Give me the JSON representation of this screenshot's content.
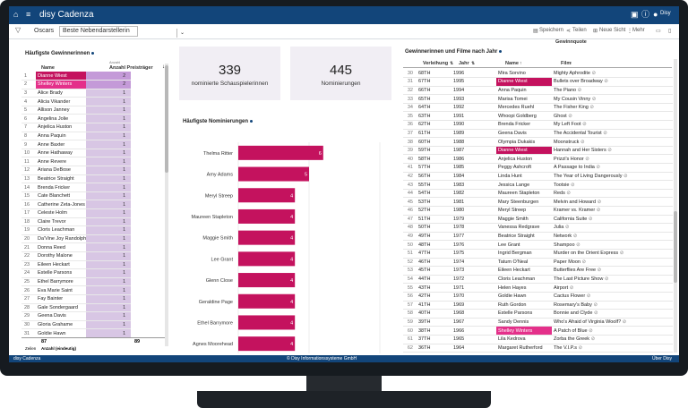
{
  "app": {
    "title": "disy Cadenza",
    "user": "Disy",
    "status_left": "disy Cadenza",
    "status_center": "© Disy Informationssysteme GmbH",
    "status_right": "Über Disy"
  },
  "toolbar": {
    "crumb": "Oscars",
    "selected_view": "Beste Nebendarstellerin",
    "save": "Speichern",
    "share": "Teilen",
    "new_view": "Neue Sicht",
    "more": "Mehr"
  },
  "left_panel": {
    "title": "Häufigste Gewinnerinnen",
    "col_name": "Name",
    "col_count_top": "Anzahl",
    "col_count": "Anzahl Preisträger",
    "rows": [
      {
        "num": "1",
        "name": "Dianne Wiest",
        "count": "2",
        "hl": "hl"
      },
      {
        "num": "2",
        "name": "Shelley Winters",
        "count": "2",
        "hl": "hl2"
      },
      {
        "num": "3",
        "name": "Alice Brady",
        "count": "1",
        "hl": ""
      },
      {
        "num": "4",
        "name": "Alicia Vikander",
        "count": "1",
        "hl": ""
      },
      {
        "num": "5",
        "name": "Allison Janney",
        "count": "1",
        "hl": ""
      },
      {
        "num": "6",
        "name": "Angelina Jolie",
        "count": "1",
        "hl": ""
      },
      {
        "num": "7",
        "name": "Anjelica Huston",
        "count": "1",
        "hl": ""
      },
      {
        "num": "8",
        "name": "Anna Paquin",
        "count": "1",
        "hl": ""
      },
      {
        "num": "9",
        "name": "Anne Baxter",
        "count": "1",
        "hl": ""
      },
      {
        "num": "10",
        "name": "Anne Hathaway",
        "count": "1",
        "hl": ""
      },
      {
        "num": "11",
        "name": "Anne Revere",
        "count": "1",
        "hl": ""
      },
      {
        "num": "12",
        "name": "Ariana DeBose",
        "count": "1",
        "hl": ""
      },
      {
        "num": "13",
        "name": "Beatrice Straight",
        "count": "1",
        "hl": ""
      },
      {
        "num": "14",
        "name": "Brenda Fricker",
        "count": "1",
        "hl": ""
      },
      {
        "num": "15",
        "name": "Cate Blanchett",
        "count": "1",
        "hl": ""
      },
      {
        "num": "16",
        "name": "Catherine Zeta-Jones",
        "count": "1",
        "hl": ""
      },
      {
        "num": "17",
        "name": "Celeste Holm",
        "count": "1",
        "hl": ""
      },
      {
        "num": "18",
        "name": "Claire Trevor",
        "count": "1",
        "hl": ""
      },
      {
        "num": "19",
        "name": "Cloris Leachman",
        "count": "1",
        "hl": ""
      },
      {
        "num": "20",
        "name": "Da'Vine Joy Randolph",
        "count": "1",
        "hl": ""
      },
      {
        "num": "21",
        "name": "Donna Reed",
        "count": "1",
        "hl": ""
      },
      {
        "num": "22",
        "name": "Dorothy Malone",
        "count": "1",
        "hl": ""
      },
      {
        "num": "23",
        "name": "Eileen Heckart",
        "count": "1",
        "hl": ""
      },
      {
        "num": "24",
        "name": "Estelle Parsons",
        "count": "1",
        "hl": ""
      },
      {
        "num": "25",
        "name": "Ethel Barrymore",
        "count": "1",
        "hl": ""
      },
      {
        "num": "26",
        "name": "Eva Marie Saint",
        "count": "1",
        "hl": ""
      },
      {
        "num": "27",
        "name": "Fay Bainter",
        "count": "1",
        "hl": ""
      },
      {
        "num": "28",
        "name": "Gale Sondergaard",
        "count": "1",
        "hl": ""
      },
      {
        "num": "29",
        "name": "Geena Davis",
        "count": "1",
        "hl": ""
      },
      {
        "num": "30",
        "name": "Gloria Grahame",
        "count": "1",
        "hl": ""
      },
      {
        "num": "31",
        "name": "Goldie Hawn",
        "count": "1",
        "hl": ""
      }
    ],
    "footer_num": "87",
    "footer_count": "89",
    "footer_rows_label": "Zeilen",
    "footer_count_label": "Anzahl (eindeutig)"
  },
  "kpis": [
    {
      "value": "339",
      "label": "nominierte Schauspielerinnen"
    },
    {
      "value": "445",
      "label": "Nominierungen"
    }
  ],
  "chart_panel": {
    "title": "Häufigste Nominierungen"
  },
  "chart_data": {
    "type": "bar",
    "orientation": "horizontal",
    "categories": [
      "Thelma Ritter",
      "Amy Adams",
      "Meryl Streep",
      "Maureen Stapleton",
      "Maggie Smith",
      "Lee Grant",
      "Glenn Close",
      "Geraldine Page",
      "Ethel Barrymore",
      "Agnes Moorehead"
    ],
    "values": [
      6,
      5,
      4,
      4,
      4,
      4,
      4,
      4,
      4,
      4
    ],
    "xlabel": "Nominierungen",
    "xlim": [
      0,
      10
    ],
    "xticks": [
      "0",
      "5",
      "10"
    ],
    "color": "#c4125e"
  },
  "right_panel": {
    "title": "Gewinnerinnen und Filme nach Jahr",
    "quota_label": "Gewinnquote",
    "col_award": "Verleihung",
    "col_year": "Jahr",
    "col_name": "Name",
    "col_film": "Film",
    "rows": [
      {
        "rn": "30",
        "award": "68TH",
        "year": "1996",
        "name": "Mira Sorvino",
        "film": "Mighty Aphrodite",
        "hl": ""
      },
      {
        "rn": "31",
        "award": "67TH",
        "year": "1995",
        "name": "Dianne Wiest",
        "film": "Bullets over Broadway",
        "hl": "hl"
      },
      {
        "rn": "32",
        "award": "66TH",
        "year": "1994",
        "name": "Anna Paquin",
        "film": "The Piano",
        "hl": ""
      },
      {
        "rn": "33",
        "award": "65TH",
        "year": "1993",
        "name": "Marisa Tomei",
        "film": "My Cousin Vinny",
        "hl": ""
      },
      {
        "rn": "34",
        "award": "64TH",
        "year": "1992",
        "name": "Mercedes Ruehl",
        "film": "The Fisher King",
        "hl": ""
      },
      {
        "rn": "35",
        "award": "63TH",
        "year": "1991",
        "name": "Whoopi Goldberg",
        "film": "Ghost",
        "hl": ""
      },
      {
        "rn": "36",
        "award": "62TH",
        "year": "1990",
        "name": "Brenda Fricker",
        "film": "My Left Foot",
        "hl": ""
      },
      {
        "rn": "37",
        "award": "61TH",
        "year": "1989",
        "name": "Geena Davis",
        "film": "The Accidental Tourist",
        "hl": ""
      },
      {
        "rn": "38",
        "award": "60TH",
        "year": "1988",
        "name": "Olympia Dukakis",
        "film": "Moonstruck",
        "hl": ""
      },
      {
        "rn": "39",
        "award": "59TH",
        "year": "1987",
        "name": "Dianne Wiest",
        "film": "Hannah and Her Sisters",
        "hl": "hl"
      },
      {
        "rn": "40",
        "award": "58TH",
        "year": "1986",
        "name": "Anjelica Huston",
        "film": "Prizzi's Honor",
        "hl": ""
      },
      {
        "rn": "41",
        "award": "57TH",
        "year": "1985",
        "name": "Peggy Ashcroft",
        "film": "A Passage to India",
        "hl": ""
      },
      {
        "rn": "42",
        "award": "56TH",
        "year": "1984",
        "name": "Linda Hunt",
        "film": "The Year of Living Dangerously",
        "hl": ""
      },
      {
        "rn": "43",
        "award": "55TH",
        "year": "1983",
        "name": "Jessica Lange",
        "film": "Tootsie",
        "hl": ""
      },
      {
        "rn": "44",
        "award": "54TH",
        "year": "1982",
        "name": "Maureen Stapleton",
        "film": "Reds",
        "hl": ""
      },
      {
        "rn": "45",
        "award": "53TH",
        "year": "1981",
        "name": "Mary Steenburgen",
        "film": "Melvin and Howard",
        "hl": ""
      },
      {
        "rn": "46",
        "award": "52TH",
        "year": "1980",
        "name": "Meryl Streep",
        "film": "Kramer vs. Kramer",
        "hl": ""
      },
      {
        "rn": "47",
        "award": "51TH",
        "year": "1979",
        "name": "Maggie Smith",
        "film": "California Suite",
        "hl": ""
      },
      {
        "rn": "48",
        "award": "50TH",
        "year": "1978",
        "name": "Vanessa Redgrave",
        "film": "Julia",
        "hl": ""
      },
      {
        "rn": "49",
        "award": "49TH",
        "year": "1977",
        "name": "Beatrice Straight",
        "film": "Network",
        "hl": ""
      },
      {
        "rn": "50",
        "award": "48TH",
        "year": "1976",
        "name": "Lee Grant",
        "film": "Shampoo",
        "hl": ""
      },
      {
        "rn": "51",
        "award": "47TH",
        "year": "1975",
        "name": "Ingrid Bergman",
        "film": "Murder on the Orient Express",
        "hl": ""
      },
      {
        "rn": "52",
        "award": "46TH",
        "year": "1974",
        "name": "Tatum O'Neal",
        "film": "Paper Moon",
        "hl": ""
      },
      {
        "rn": "53",
        "award": "45TH",
        "year": "1973",
        "name": "Eileen Heckart",
        "film": "Butterflies Are Free",
        "hl": ""
      },
      {
        "rn": "54",
        "award": "44TH",
        "year": "1972",
        "name": "Cloris Leachman",
        "film": "The Last Picture Show",
        "hl": ""
      },
      {
        "rn": "55",
        "award": "43TH",
        "year": "1971",
        "name": "Helen Hayes",
        "film": "Airport",
        "hl": ""
      },
      {
        "rn": "56",
        "award": "42TH",
        "year": "1970",
        "name": "Goldie Hawn",
        "film": "Cactus Flower",
        "hl": ""
      },
      {
        "rn": "57",
        "award": "41TH",
        "year": "1969",
        "name": "Ruth Gordon",
        "film": "Rosemary's Baby",
        "hl": ""
      },
      {
        "rn": "58",
        "award": "40TH",
        "year": "1968",
        "name": "Estelle Parsons",
        "film": "Bonnie and Clyde",
        "hl": ""
      },
      {
        "rn": "59",
        "award": "39TH",
        "year": "1967",
        "name": "Sandy Dennis",
        "film": "Who's Afraid of Virginia Woolf?",
        "hl": ""
      },
      {
        "rn": "60",
        "award": "38TH",
        "year": "1966",
        "name": "Shelley Winters",
        "film": "A Patch of Blue",
        "hl": "hl2"
      },
      {
        "rn": "61",
        "award": "37TH",
        "year": "1965",
        "name": "Lila Kedrova",
        "film": "Zorba the Greek",
        "hl": ""
      },
      {
        "rn": "62",
        "award": "36TH",
        "year": "1964",
        "name": "Margaret Rutherford",
        "film": "The V.I.P.s",
        "hl": ""
      }
    ]
  }
}
